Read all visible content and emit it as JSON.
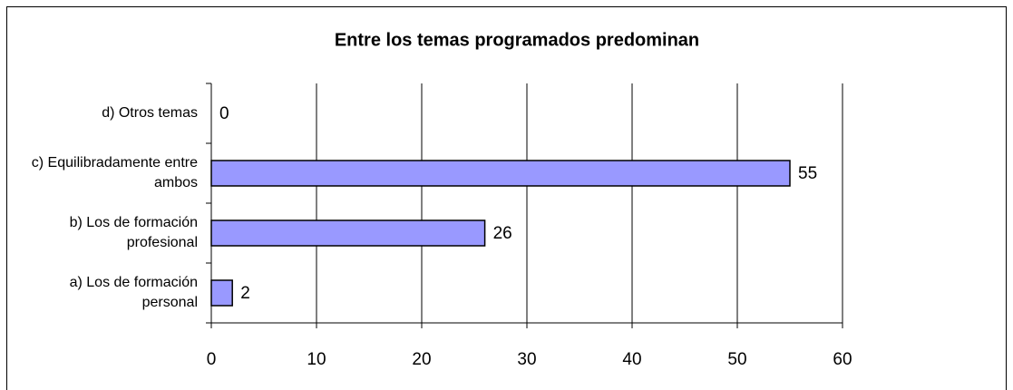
{
  "chart_data": {
    "type": "bar",
    "orientation": "horizontal",
    "title": "Entre los temas programados predominan",
    "categories": [
      "a) Los de formación personal",
      "b) Los de formación profesional",
      "c) Equilibradamente entre ambos",
      "d) Otros temas"
    ],
    "values": [
      2,
      26,
      55,
      0
    ],
    "color": "#9999ff",
    "xlim": [
      0,
      60
    ],
    "xticks": [
      0,
      10,
      20,
      30,
      40,
      50,
      60
    ],
    "grid": true
  }
}
